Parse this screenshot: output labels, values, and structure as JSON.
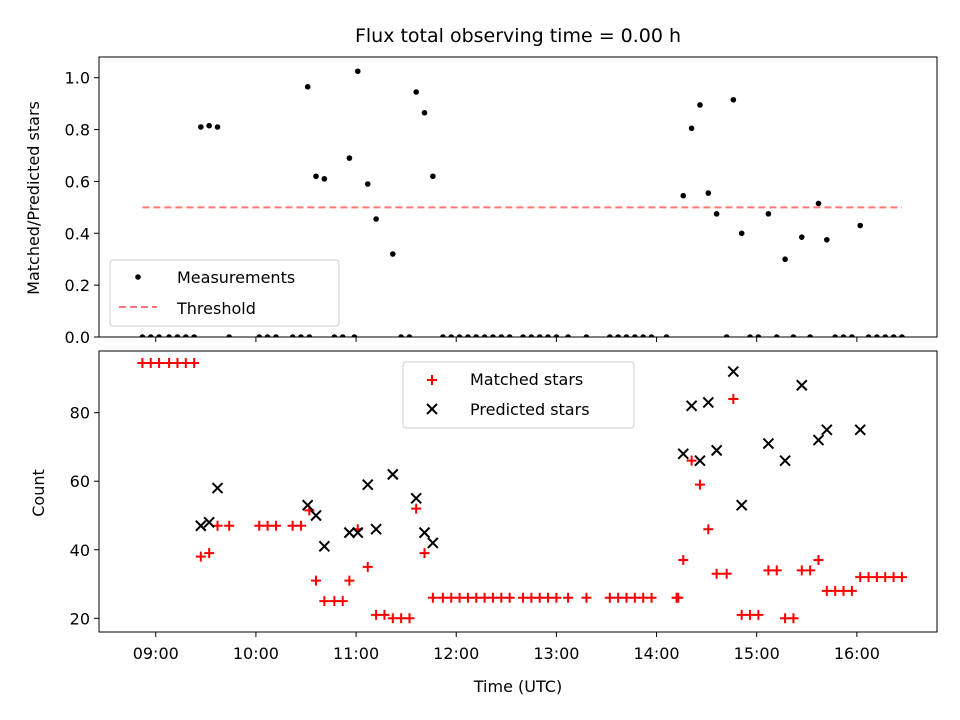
{
  "chart_data": [
    {
      "type": "scatter",
      "title": "Flux total observing time = 0.00 h",
      "xlabel": "",
      "ylabel": "Matched/Predicted stars",
      "xlim": [
        "08:26",
        "16:48"
      ],
      "ylim": [
        0,
        1.08
      ],
      "yticks": [
        "0.0",
        "0.2",
        "0.4",
        "0.6",
        "0.8",
        "1.0"
      ],
      "legend_position": "lower-left",
      "series": [
        {
          "name": "Measurements",
          "marker": "dot",
          "color": "#000000",
          "points": [
            [
              "08:52",
              0
            ],
            [
              "08:57",
              0
            ],
            [
              "09:02",
              0
            ],
            [
              "09:08",
              0
            ],
            [
              "09:13",
              0
            ],
            [
              "09:18",
              0
            ],
            [
              "09:23",
              0
            ],
            [
              "09:27",
              0.81
            ],
            [
              "09:32",
              0.815
            ],
            [
              "09:37",
              0.81
            ],
            [
              "09:44",
              0
            ],
            [
              "10:02",
              0
            ],
            [
              "10:07",
              0
            ],
            [
              "10:12",
              0
            ],
            [
              "10:22",
              0
            ],
            [
              "10:27",
              0
            ],
            [
              "10:32",
              0
            ],
            [
              "10:31",
              0.965
            ],
            [
              "10:36",
              0.62
            ],
            [
              "10:41",
              0.61
            ],
            [
              "10:47",
              0
            ],
            [
              "10:52",
              0
            ],
            [
              "10:56",
              0.69
            ],
            [
              "11:01",
              1.025
            ],
            [
              "10:59",
              0
            ],
            [
              "11:07",
              0.59
            ],
            [
              "11:12",
              0.455
            ],
            [
              "11:22",
              0.32
            ],
            [
              "11:27",
              0
            ],
            [
              "11:32",
              0
            ],
            [
              "11:36",
              0.945
            ],
            [
              "11:41",
              0.865
            ],
            [
              "11:46",
              0.62
            ],
            [
              "11:52",
              0
            ],
            [
              "11:57",
              0
            ],
            [
              "12:02",
              0
            ],
            [
              "12:07",
              0
            ],
            [
              "12:12",
              0
            ],
            [
              "12:17",
              0
            ],
            [
              "12:22",
              0
            ],
            [
              "12:27",
              0
            ],
            [
              "12:32",
              0
            ],
            [
              "12:40",
              0
            ],
            [
              "12:45",
              0
            ],
            [
              "12:50",
              0
            ],
            [
              "12:55",
              0
            ],
            [
              "13:00",
              0
            ],
            [
              "13:07",
              0
            ],
            [
              "13:18",
              0
            ],
            [
              "13:32",
              0
            ],
            [
              "13:37",
              0
            ],
            [
              "13:42",
              0
            ],
            [
              "13:47",
              0
            ],
            [
              "13:52",
              0
            ],
            [
              "13:57",
              0
            ],
            [
              "14:06",
              0
            ],
            [
              "14:16",
              0.545
            ],
            [
              "14:21",
              0.805
            ],
            [
              "14:26",
              0.895
            ],
            [
              "14:31",
              0.555
            ],
            [
              "14:36",
              0.475
            ],
            [
              "14:42",
              0
            ],
            [
              "14:46",
              0.915
            ],
            [
              "14:51",
              0.4
            ],
            [
              "14:56",
              0
            ],
            [
              "15:01",
              0
            ],
            [
              "15:07",
              0.475
            ],
            [
              "15:12",
              0
            ],
            [
              "15:17",
              0.3
            ],
            [
              "15:22",
              0
            ],
            [
              "15:27",
              0.385
            ],
            [
              "15:32",
              0
            ],
            [
              "15:37",
              0.515
            ],
            [
              "15:42",
              0.375
            ],
            [
              "15:47",
              0
            ],
            [
              "15:52",
              0
            ],
            [
              "15:57",
              0
            ],
            [
              "16:02",
              0.43
            ],
            [
              "16:07",
              0
            ],
            [
              "16:12",
              0
            ],
            [
              "16:17",
              0
            ],
            [
              "16:22",
              0
            ],
            [
              "16:27",
              0
            ]
          ]
        },
        {
          "name": "Threshold",
          "marker": "dashed-line",
          "color": "#ff7777",
          "points": [
            [
              "08:52",
              0.5
            ],
            [
              "16:27",
              0.5
            ]
          ]
        }
      ]
    },
    {
      "type": "scatter",
      "title": "",
      "xlabel": "Time (UTC)",
      "ylabel": "Count",
      "xlim": [
        "08:26",
        "16:48"
      ],
      "ylim": [
        16,
        98
      ],
      "yticks": [
        "20",
        "40",
        "60",
        "80"
      ],
      "xticks": [
        "09:00",
        "10:00",
        "11:00",
        "12:00",
        "13:00",
        "14:00",
        "15:00",
        "16:00"
      ],
      "legend_position": "upper-center",
      "series": [
        {
          "name": "Matched stars",
          "marker": "plus",
          "color": "#ff0000",
          "points": [
            [
              "08:52",
              94.5
            ],
            [
              "08:57",
              94.5
            ],
            [
              "09:02",
              94.5
            ],
            [
              "09:08",
              94.5
            ],
            [
              "09:13",
              94.5
            ],
            [
              "09:18",
              94.5
            ],
            [
              "09:23",
              94.5
            ],
            [
              "09:27",
              38
            ],
            [
              "09:32",
              39
            ],
            [
              "09:37",
              47
            ],
            [
              "09:44",
              47
            ],
            [
              "10:02",
              47
            ],
            [
              "10:07",
              47
            ],
            [
              "10:12",
              47
            ],
            [
              "10:22",
              47
            ],
            [
              "10:27",
              47
            ],
            [
              "10:32",
              51.5
            ],
            [
              "10:36",
              31
            ],
            [
              "10:41",
              25
            ],
            [
              "10:47",
              25
            ],
            [
              "10:52",
              25
            ],
            [
              "10:56",
              31
            ],
            [
              "11:01",
              46
            ],
            [
              "11:07",
              35
            ],
            [
              "11:12",
              21
            ],
            [
              "11:17",
              21
            ],
            [
              "11:22",
              20
            ],
            [
              "11:27",
              20
            ],
            [
              "11:32",
              20
            ],
            [
              "11:36",
              52
            ],
            [
              "11:41",
              39
            ],
            [
              "11:46",
              26
            ],
            [
              "11:52",
              26
            ],
            [
              "11:57",
              26
            ],
            [
              "12:02",
              26
            ],
            [
              "12:07",
              26
            ],
            [
              "12:12",
              26
            ],
            [
              "12:17",
              26
            ],
            [
              "12:22",
              26
            ],
            [
              "12:27",
              26
            ],
            [
              "12:32",
              26
            ],
            [
              "12:40",
              26
            ],
            [
              "12:45",
              26
            ],
            [
              "12:50",
              26
            ],
            [
              "12:55",
              26
            ],
            [
              "13:00",
              26
            ],
            [
              "13:07",
              26
            ],
            [
              "13:18",
              26
            ],
            [
              "13:32",
              26
            ],
            [
              "13:37",
              26
            ],
            [
              "13:42",
              26
            ],
            [
              "13:47",
              26
            ],
            [
              "13:52",
              26
            ],
            [
              "13:57",
              26
            ],
            [
              "14:12",
              26
            ],
            [
              "14:13",
              26
            ],
            [
              "14:16",
              37
            ],
            [
              "14:21",
              66
            ],
            [
              "14:26",
              59
            ],
            [
              "14:31",
              46
            ],
            [
              "14:36",
              33
            ],
            [
              "14:42",
              33
            ],
            [
              "14:46",
              84
            ],
            [
              "14:51",
              21
            ],
            [
              "14:56",
              21
            ],
            [
              "15:01",
              21
            ],
            [
              "15:07",
              34
            ],
            [
              "15:12",
              34
            ],
            [
              "15:17",
              20
            ],
            [
              "15:22",
              20
            ],
            [
              "15:27",
              34
            ],
            [
              "15:32",
              34
            ],
            [
              "15:37",
              37
            ],
            [
              "15:42",
              28
            ],
            [
              "15:47",
              28
            ],
            [
              "15:52",
              28
            ],
            [
              "15:57",
              28
            ],
            [
              "16:02",
              32
            ],
            [
              "16:07",
              32
            ],
            [
              "16:12",
              32
            ],
            [
              "16:17",
              32
            ],
            [
              "16:22",
              32
            ],
            [
              "16:27",
              32
            ]
          ]
        },
        {
          "name": "Predicted stars",
          "marker": "x",
          "color": "#000000",
          "points": [
            [
              "09:27",
              47
            ],
            [
              "09:32",
              48
            ],
            [
              "09:37",
              58
            ],
            [
              "10:31",
              53
            ],
            [
              "10:36",
              50
            ],
            [
              "10:41",
              41
            ],
            [
              "10:56",
              45
            ],
            [
              "11:01",
              45
            ],
            [
              "11:07",
              59
            ],
            [
              "11:12",
              46
            ],
            [
              "11:22",
              62
            ],
            [
              "11:36",
              55
            ],
            [
              "11:41",
              45
            ],
            [
              "11:46",
              42
            ],
            [
              "14:16",
              68
            ],
            [
              "14:21",
              82
            ],
            [
              "14:26",
              66
            ],
            [
              "14:31",
              83
            ],
            [
              "14:36",
              69
            ],
            [
              "14:46",
              92
            ],
            [
              "14:51",
              53
            ],
            [
              "15:07",
              71
            ],
            [
              "15:17",
              66
            ],
            [
              "15:27",
              88
            ],
            [
              "15:37",
              72
            ],
            [
              "15:42",
              75
            ],
            [
              "16:02",
              75
            ]
          ]
        }
      ]
    }
  ]
}
